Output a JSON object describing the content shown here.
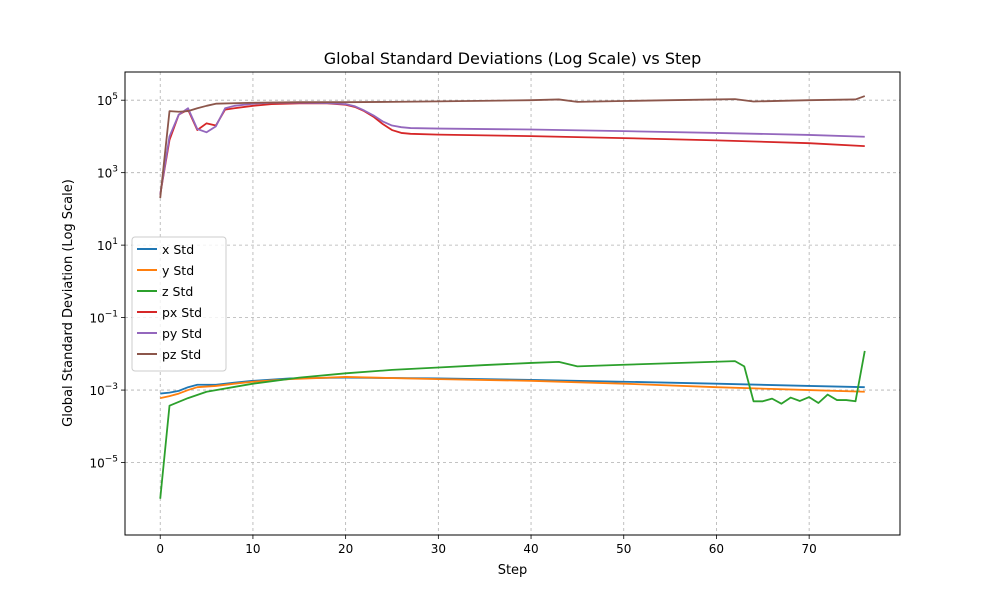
{
  "chart_data": {
    "type": "line",
    "title": "Global Standard Deviations (Log Scale) vs Step",
    "xlabel": "Step",
    "ylabel": "Global Standard Deviation (Log Scale)",
    "yscale": "log",
    "xlim": [
      -3.8,
      79.8
    ],
    "ylim": [
      1e-07,
      600000.0
    ],
    "xticks": [
      0,
      10,
      20,
      30,
      40,
      50,
      60,
      70
    ],
    "xtick_labels": [
      "0",
      "10",
      "20",
      "30",
      "40",
      "50",
      "60",
      "70"
    ],
    "yticks": [
      1e-05,
      0.001,
      0.1,
      10,
      1000,
      100000
    ],
    "ytick_labels": [
      {
        "base": "10",
        "exp": "−5"
      },
      {
        "base": "10",
        "exp": "−3"
      },
      {
        "base": "10",
        "exp": "−1"
      },
      {
        "base": "10",
        "exp": "1"
      },
      {
        "base": "10",
        "exp": "3"
      },
      {
        "base": "10",
        "exp": "5"
      }
    ],
    "grid": true,
    "legend_position": "center-left",
    "colors": {
      "x": "#1f77b4",
      "y": "#ff7f0e",
      "z": "#2ca02c",
      "px": "#d62728",
      "py": "#9467bd",
      "pz": "#8c564b",
      "grid": "#b0b0b0",
      "axis": "#000000"
    },
    "series": [
      {
        "name": "x Std",
        "color": "#1f77b4",
        "points": [
          [
            0,
            0.0008
          ],
          [
            1,
            0.00085
          ],
          [
            2,
            0.00095
          ],
          [
            3,
            0.0012
          ],
          [
            4,
            0.0014
          ],
          [
            6,
            0.0014
          ],
          [
            8,
            0.0016
          ],
          [
            10,
            0.0018
          ],
          [
            14,
            0.0021
          ],
          [
            20,
            0.0022
          ],
          [
            30,
            0.0021
          ],
          [
            40,
            0.0019
          ],
          [
            50,
            0.0017
          ],
          [
            60,
            0.0015
          ],
          [
            70,
            0.0013
          ],
          [
            76,
            0.0012
          ]
        ]
      },
      {
        "name": "y Std",
        "color": "#ff7f0e",
        "points": [
          [
            0,
            0.0006
          ],
          [
            1,
            0.00068
          ],
          [
            2,
            0.0008
          ],
          [
            3,
            0.001
          ],
          [
            4,
            0.0012
          ],
          [
            6,
            0.0013
          ],
          [
            8,
            0.0015
          ],
          [
            10,
            0.0017
          ],
          [
            14,
            0.002
          ],
          [
            20,
            0.0023
          ],
          [
            30,
            0.002
          ],
          [
            40,
            0.0018
          ],
          [
            50,
            0.0015
          ],
          [
            60,
            0.0012
          ],
          [
            70,
            0.001
          ],
          [
            76,
            0.0009
          ]
        ]
      },
      {
        "name": "z Std",
        "color": "#2ca02c",
        "points": [
          [
            0,
            1e-06
          ],
          [
            1,
            0.00037
          ],
          [
            3,
            0.0006
          ],
          [
            5,
            0.0009
          ],
          [
            10,
            0.0015
          ],
          [
            15,
            0.0022
          ],
          [
            20,
            0.0029
          ],
          [
            25,
            0.0036
          ],
          [
            30,
            0.0042
          ],
          [
            35,
            0.0049
          ],
          [
            40,
            0.0056
          ],
          [
            43,
            0.006
          ],
          [
            45,
            0.0045
          ],
          [
            50,
            0.005
          ],
          [
            55,
            0.0055
          ],
          [
            62,
            0.0063
          ],
          [
            63,
            0.0045
          ],
          [
            64,
            0.00049
          ],
          [
            65,
            0.00049
          ],
          [
            66,
            0.00058
          ],
          [
            67,
            0.00042
          ],
          [
            68,
            0.00062
          ],
          [
            69,
            0.0005
          ],
          [
            70,
            0.00064
          ],
          [
            71,
            0.00044
          ],
          [
            72,
            0.00075
          ],
          [
            73,
            0.00053
          ],
          [
            74,
            0.00053
          ],
          [
            75,
            0.00049
          ],
          [
            76,
            0.012
          ]
        ]
      },
      {
        "name": "px Std",
        "color": "#d62728",
        "points": [
          [
            0,
            250
          ],
          [
            1,
            8000
          ],
          [
            2,
            40000
          ],
          [
            3,
            55000
          ],
          [
            4,
            15000
          ],
          [
            5,
            23000
          ],
          [
            6,
            20000
          ],
          [
            7,
            55000
          ],
          [
            8,
            60000
          ],
          [
            10,
            70000
          ],
          [
            12,
            78000
          ],
          [
            15,
            82000
          ],
          [
            18,
            82000
          ],
          [
            20,
            75000
          ],
          [
            21,
            65000
          ],
          [
            22,
            50000
          ],
          [
            23,
            35000
          ],
          [
            24,
            22000
          ],
          [
            25,
            15000
          ],
          [
            26,
            12500
          ],
          [
            27,
            11800
          ],
          [
            30,
            11200
          ],
          [
            40,
            10200
          ],
          [
            50,
            9000
          ],
          [
            60,
            7800
          ],
          [
            70,
            6500
          ],
          [
            76,
            5400
          ]
        ]
      },
      {
        "name": "py Std",
        "color": "#9467bd",
        "points": [
          [
            0,
            250
          ],
          [
            1,
            10000
          ],
          [
            2,
            40000
          ],
          [
            3,
            60000
          ],
          [
            4,
            16000
          ],
          [
            5,
            13000
          ],
          [
            6,
            19000
          ],
          [
            7,
            60000
          ],
          [
            8,
            70000
          ],
          [
            10,
            80000
          ],
          [
            12,
            85000
          ],
          [
            15,
            85000
          ],
          [
            18,
            83000
          ],
          [
            20,
            78000
          ],
          [
            21,
            68000
          ],
          [
            22,
            52000
          ],
          [
            23,
            38000
          ],
          [
            24,
            26000
          ],
          [
            25,
            20000
          ],
          [
            26,
            18000
          ],
          [
            27,
            17000
          ],
          [
            30,
            16500
          ],
          [
            40,
            15500
          ],
          [
            50,
            14000
          ],
          [
            60,
            12500
          ],
          [
            70,
            11000
          ],
          [
            76,
            9800
          ]
        ]
      },
      {
        "name": "pz Std",
        "color": "#8c564b",
        "points": [
          [
            0,
            200
          ],
          [
            1,
            50000
          ],
          [
            2,
            48000
          ],
          [
            3,
            50000
          ],
          [
            4,
            60000
          ],
          [
            5,
            70000
          ],
          [
            6,
            80000
          ],
          [
            10,
            85000
          ],
          [
            15,
            88000
          ],
          [
            20,
            88000
          ],
          [
            25,
            90000
          ],
          [
            30,
            93000
          ],
          [
            40,
            100000
          ],
          [
            43,
            105000
          ],
          [
            45,
            90000
          ],
          [
            50,
            95000
          ],
          [
            55,
            100000
          ],
          [
            60,
            105000
          ],
          [
            62,
            107000
          ],
          [
            64,
            92000
          ],
          [
            70,
            100000
          ],
          [
            75,
            105000
          ],
          [
            76,
            130000
          ]
        ]
      }
    ]
  }
}
